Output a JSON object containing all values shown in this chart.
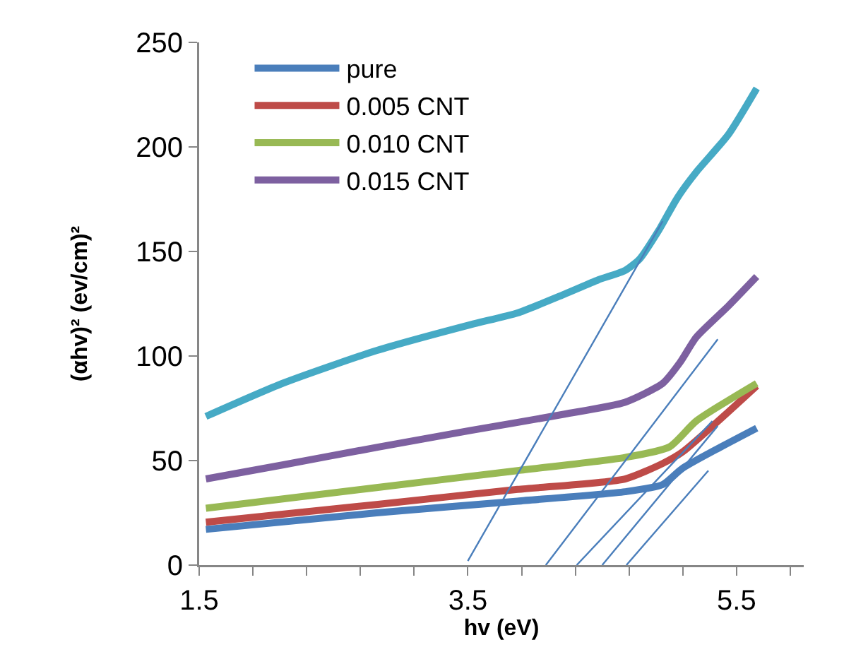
{
  "chart_data": {
    "type": "line",
    "xlabel": "hv (eV)",
    "ylabel": "(αhv)² (ev/cm)²",
    "xlim": [
      1.5,
      6.0
    ],
    "xticks": [
      1.5,
      {
        "value": 1.9,
        "label": null
      },
      {
        "value": 2.3,
        "label": null
      },
      {
        "value": 2.7,
        "label": null
      },
      {
        "value": 3.1,
        "label": null
      },
      3.5,
      {
        "value": 3.9,
        "label": null
      },
      {
        "value": 4.3,
        "label": null
      },
      {
        "value": 4.7,
        "label": null
      },
      {
        "value": 5.1,
        "label": null
      },
      5.5,
      {
        "value": 5.9,
        "label": null
      }
    ],
    "ylim": [
      0,
      250
    ],
    "yticks": [
      0,
      50,
      100,
      150,
      200,
      250
    ],
    "grid": false,
    "legend": "top left",
    "marker": "none",
    "line_style": "solid",
    "series": [
      {
        "name": "pure",
        "color": "#4a7ebb",
        "x": [
          1.55,
          2.82,
          3.87,
          4.67,
          4.95,
          5.1,
          5.65
        ],
        "values": [
          17.1,
          25,
          30.6,
          35.1,
          38.5,
          46.4,
          65.5
        ]
      },
      {
        "name": "0.005 CNT",
        "color": "#be4b48",
        "x": [
          1.55,
          2.82,
          3.87,
          4.67,
          4.95,
          5.1,
          5.65
        ],
        "values": [
          20.5,
          29,
          36.2,
          41.2,
          48.6,
          54.2,
          85.7
        ]
      },
      {
        "name": "0.010 CNT",
        "color": "#98b954",
        "x": [
          1.55,
          2.82,
          3.87,
          4.67,
          5.0,
          5.2,
          5.65
        ],
        "values": [
          27.2,
          37.1,
          45.2,
          51.5,
          56.5,
          68.9,
          86.9
        ]
      },
      {
        "name": "0.015 CNT",
        "color": "#7d60a0",
        "x": [
          1.55,
          2.12,
          2.82,
          3.52,
          4.22,
          4.67,
          4.95,
          5.08,
          5.2,
          5.44,
          5.65
        ],
        "values": [
          41.2,
          47.9,
          56.3,
          64.4,
          72.2,
          77.9,
          86.9,
          97,
          109,
          124,
          138
        ]
      },
      {
        "color": "#46aac5",
        "x": [
          1.55,
          2.12,
          2.82,
          3.52,
          3.87,
          4.22,
          4.47,
          4.67,
          4.78,
          4.92,
          5.06,
          5.2,
          5.44,
          5.65
        ],
        "values": [
          71.1,
          86.9,
          102.6,
          115,
          120.6,
          129.6,
          136.4,
          140.9,
          146.5,
          160,
          175.7,
          188,
          206,
          228
        ]
      },
      {
        "type": "line",
        "color": "#4a7ebb",
        "x": [
          3.5,
          4.95
        ],
        "values": [
          2,
          164.5
        ]
      },
      {
        "type": "line",
        "color": "#4a7ebb",
        "x": [
          4.08,
          5.36
        ],
        "values": [
          0,
          108
        ]
      },
      {
        "type": "line",
        "color": "#4a7ebb",
        "x": [
          4.31,
          5.32
        ],
        "values": [
          0,
          68.9
        ]
      },
      {
        "type": "line",
        "color": "#4a7ebb",
        "x": [
          4.5,
          5.36
        ],
        "values": [
          0,
          66.6
        ]
      },
      {
        "type": "line",
        "color": "#4a7ebb",
        "x": [
          4.68,
          5.29
        ],
        "values": [
          0,
          45.2
        ]
      }
    ]
  }
}
